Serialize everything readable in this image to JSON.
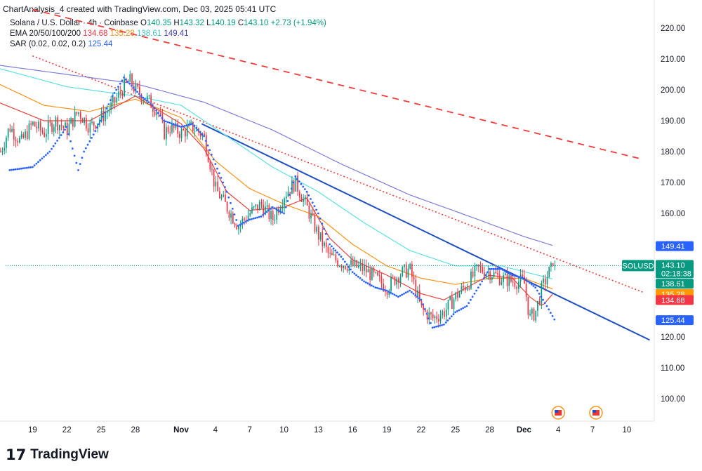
{
  "header": {
    "caption": "ChartAnalysis_4 created with TradingView.com, Dec 03, 2025 05:41 UTC"
  },
  "legend": {
    "symbol": "Solana / U.S. Dollar · 4h · Coinbase",
    "ohlc": {
      "open_label": "O",
      "open": "140.35",
      "high_label": "H",
      "high": "143.32",
      "low_label": "L",
      "low": "140.19",
      "close_label": "C",
      "close": "143.10",
      "change": "+2.73 (+1.94%)"
    },
    "ema_label": "EMA 20/50/100/200",
    "ema_values": [
      "134.68",
      "135.28",
      "138.61",
      "149.41"
    ],
    "sar_label": "SAR (0.02, 0.02, 0.2)",
    "sar_value": "125.44"
  },
  "footer": {
    "logo_glyph": "17",
    "brand": "TradingView"
  },
  "colors": {
    "up": "#089981",
    "down": "#f23645",
    "ema20": "#e8413a",
    "ema50": "#f7931a",
    "ema100": "#5ce1e6",
    "ema200": "#7e7ed6",
    "sar": "#2962ff",
    "trend_blue": "#1e4fc2",
    "trend_red": "#ef3b3b",
    "price_line": "#089981"
  },
  "chart_data": {
    "type": "candlestick",
    "symbol_tag": "SOLUSD",
    "countdown": "02:18:38",
    "ylim": [
      93,
      226
    ],
    "y_ticks": [
      "220.00",
      "210.00",
      "200.00",
      "190.00",
      "180.00",
      "170.00",
      "160.00",
      "150.00",
      "120.00",
      "110.00",
      "100.00"
    ],
    "y_tick_values": [
      220,
      210,
      200,
      190,
      180,
      170,
      160,
      150,
      120,
      110,
      100
    ],
    "x_ticks": [
      "19",
      "22",
      "25",
      "28",
      "Nov",
      "4",
      "7",
      "10",
      "13",
      "16",
      "19",
      "22",
      "25",
      "28",
      "Dec",
      "4",
      "7",
      "10"
    ],
    "x_tick_days": [
      -13,
      -10,
      -7,
      -4,
      0,
      3,
      6,
      9,
      12,
      15,
      18,
      21,
      24,
      27,
      30,
      33,
      36,
      39
    ],
    "x_bold_ticks": [
      "Nov",
      "Dec"
    ],
    "price_tags": [
      {
        "label": "149.41",
        "value": 149.41,
        "color": "#2962ff"
      },
      {
        "label": "143.10",
        "value": 143.1,
        "color": "#089981"
      },
      {
        "label": "138.61",
        "value": 138.61,
        "color": "#089981"
      },
      {
        "label": "135.28",
        "value": 135.28,
        "color": "#ff9800"
      },
      {
        "label": "134.68",
        "value": 134.68,
        "color": "#f23645"
      },
      {
        "label": "125.44",
        "value": 125.44,
        "color": "#2962ff"
      }
    ],
    "close_anchors": [
      [
        -15.8,
        180
      ],
      [
        -15,
        188
      ],
      [
        -14,
        183
      ],
      [
        -13,
        189
      ],
      [
        -12,
        186
      ],
      [
        -11,
        190
      ],
      [
        -10,
        187
      ],
      [
        -9,
        193
      ],
      [
        -8,
        188
      ],
      [
        -7,
        191
      ],
      [
        -6,
        195
      ],
      [
        -5,
        201
      ],
      [
        -4.5,
        203
      ],
      [
        -4,
        200
      ],
      [
        -3,
        197
      ],
      [
        -2,
        193
      ],
      [
        -1.5,
        186
      ],
      [
        -1,
        188
      ],
      [
        0,
        186
      ],
      [
        1,
        188
      ],
      [
        2,
        185
      ],
      [
        2.5,
        177
      ],
      [
        3,
        168
      ],
      [
        4,
        162
      ],
      [
        5,
        156
      ],
      [
        6,
        160
      ],
      [
        7,
        163
      ],
      [
        8,
        158
      ],
      [
        9,
        166
      ],
      [
        10,
        170
      ],
      [
        11,
        162
      ],
      [
        12,
        153
      ],
      [
        13,
        146
      ],
      [
        14,
        144
      ],
      [
        15,
        143
      ],
      [
        16,
        142
      ],
      [
        17,
        139
      ],
      [
        18,
        136
      ],
      [
        19,
        140
      ],
      [
        20,
        142
      ],
      [
        21,
        129
      ],
      [
        22,
        126
      ],
      [
        23,
        128
      ],
      [
        24,
        133
      ],
      [
        25,
        137
      ],
      [
        26,
        142
      ],
      [
        27,
        141
      ],
      [
        28,
        139
      ],
      [
        29,
        138
      ],
      [
        30,
        138
      ],
      [
        30.5,
        126
      ],
      [
        31,
        128
      ],
      [
        31.6,
        136
      ],
      [
        32.2,
        141
      ],
      [
        32.7,
        143.1
      ]
    ],
    "ema_series": [
      {
        "name": "EMA 200",
        "value": 149.41,
        "anchors": [
          [
            -16,
            208
          ],
          [
            -10,
            205
          ],
          [
            -4,
            202
          ],
          [
            2,
            196
          ],
          [
            8,
            187
          ],
          [
            14,
            176
          ],
          [
            20,
            166
          ],
          [
            26,
            158
          ],
          [
            30,
            152.5
          ],
          [
            32.7,
            149.4
          ]
        ]
      },
      {
        "name": "EMA 100",
        "value": 138.61,
        "anchors": [
          [
            -16,
            207
          ],
          [
            -10,
            201
          ],
          [
            -4,
            198
          ],
          [
            0,
            195
          ],
          [
            4,
            185
          ],
          [
            8,
            175
          ],
          [
            12,
            167
          ],
          [
            16,
            157
          ],
          [
            20,
            148
          ],
          [
            24,
            143
          ],
          [
            28,
            143
          ],
          [
            32.7,
            138.6
          ]
        ]
      },
      {
        "name": "EMA 50",
        "value": 135.28,
        "anchors": [
          [
            -16,
            202
          ],
          [
            -12,
            195
          ],
          [
            -8,
            193
          ],
          [
            -4,
            197
          ],
          [
            0,
            191
          ],
          [
            3,
            177
          ],
          [
            6,
            168
          ],
          [
            9,
            163
          ],
          [
            12,
            159
          ],
          [
            15,
            150
          ],
          [
            18,
            143
          ],
          [
            21,
            139
          ],
          [
            24,
            137
          ],
          [
            27,
            139
          ],
          [
            30,
            139
          ],
          [
            32.7,
            135.3
          ]
        ]
      },
      {
        "name": "EMA 20",
        "value": 134.68,
        "anchors": [
          [
            -16,
            196
          ],
          [
            -12,
            190
          ],
          [
            -8,
            190
          ],
          [
            -4,
            198
          ],
          [
            0,
            189
          ],
          [
            2,
            181
          ],
          [
            4,
            167
          ],
          [
            6,
            161
          ],
          [
            9,
            162
          ],
          [
            11,
            165
          ],
          [
            13,
            152
          ],
          [
            15,
            145
          ],
          [
            18,
            140
          ],
          [
            21,
            134
          ],
          [
            23,
            132
          ],
          [
            25,
            136
          ],
          [
            27,
            140
          ],
          [
            29,
            139
          ],
          [
            30.5,
            133
          ],
          [
            31.6,
            130
          ],
          [
            32.7,
            134.7
          ]
        ]
      }
    ],
    "sar_anchors": [
      [
        -15,
        174
      ],
      [
        -13,
        175
      ],
      [
        -11.5,
        180
      ],
      [
        -10,
        188
      ],
      [
        -9,
        174
      ],
      [
        -8.5,
        180
      ],
      [
        -7,
        190
      ],
      [
        -6,
        198
      ],
      [
        -5,
        204
      ],
      [
        -3.5,
        198
      ],
      [
        -2.5,
        195
      ],
      [
        -1.5,
        190
      ],
      [
        0,
        188
      ],
      [
        1,
        189
      ],
      [
        2,
        185
      ],
      [
        3,
        176
      ],
      [
        4,
        167
      ],
      [
        5,
        156
      ],
      [
        6,
        158
      ],
      [
        7,
        159
      ],
      [
        8,
        162
      ],
      [
        9,
        160
      ],
      [
        10,
        172
      ],
      [
        11,
        167
      ],
      [
        12,
        160
      ],
      [
        13,
        150
      ],
      [
        14,
        146
      ],
      [
        15,
        141
      ],
      [
        16,
        138
      ],
      [
        17,
        136
      ],
      [
        18,
        135
      ],
      [
        19,
        133
      ],
      [
        20,
        135
      ],
      [
        21,
        132
      ],
      [
        22,
        123
      ],
      [
        23,
        124
      ],
      [
        24,
        128
      ],
      [
        25,
        130
      ],
      [
        26,
        136
      ],
      [
        27,
        142
      ],
      [
        28,
        142
      ],
      [
        29,
        140
      ],
      [
        30,
        139
      ],
      [
        31,
        136
      ],
      [
        32,
        130
      ],
      [
        32.7,
        125.44
      ]
    ],
    "trendlines": [
      {
        "name": "descending-support",
        "style": "solid",
        "from": [
          1.8,
          189
        ],
        "to": [
          41,
          119
        ]
      },
      {
        "name": "descending-dotted",
        "style": "dotted",
        "from": [
          -13,
          211
        ],
        "to": [
          40.4,
          134.5
        ]
      },
      {
        "name": "descending-dashed",
        "style": "dashed",
        "from": [
          -13,
          226
        ],
        "to": [
          40.4,
          177.5
        ]
      }
    ],
    "last_price": 143.1
  }
}
